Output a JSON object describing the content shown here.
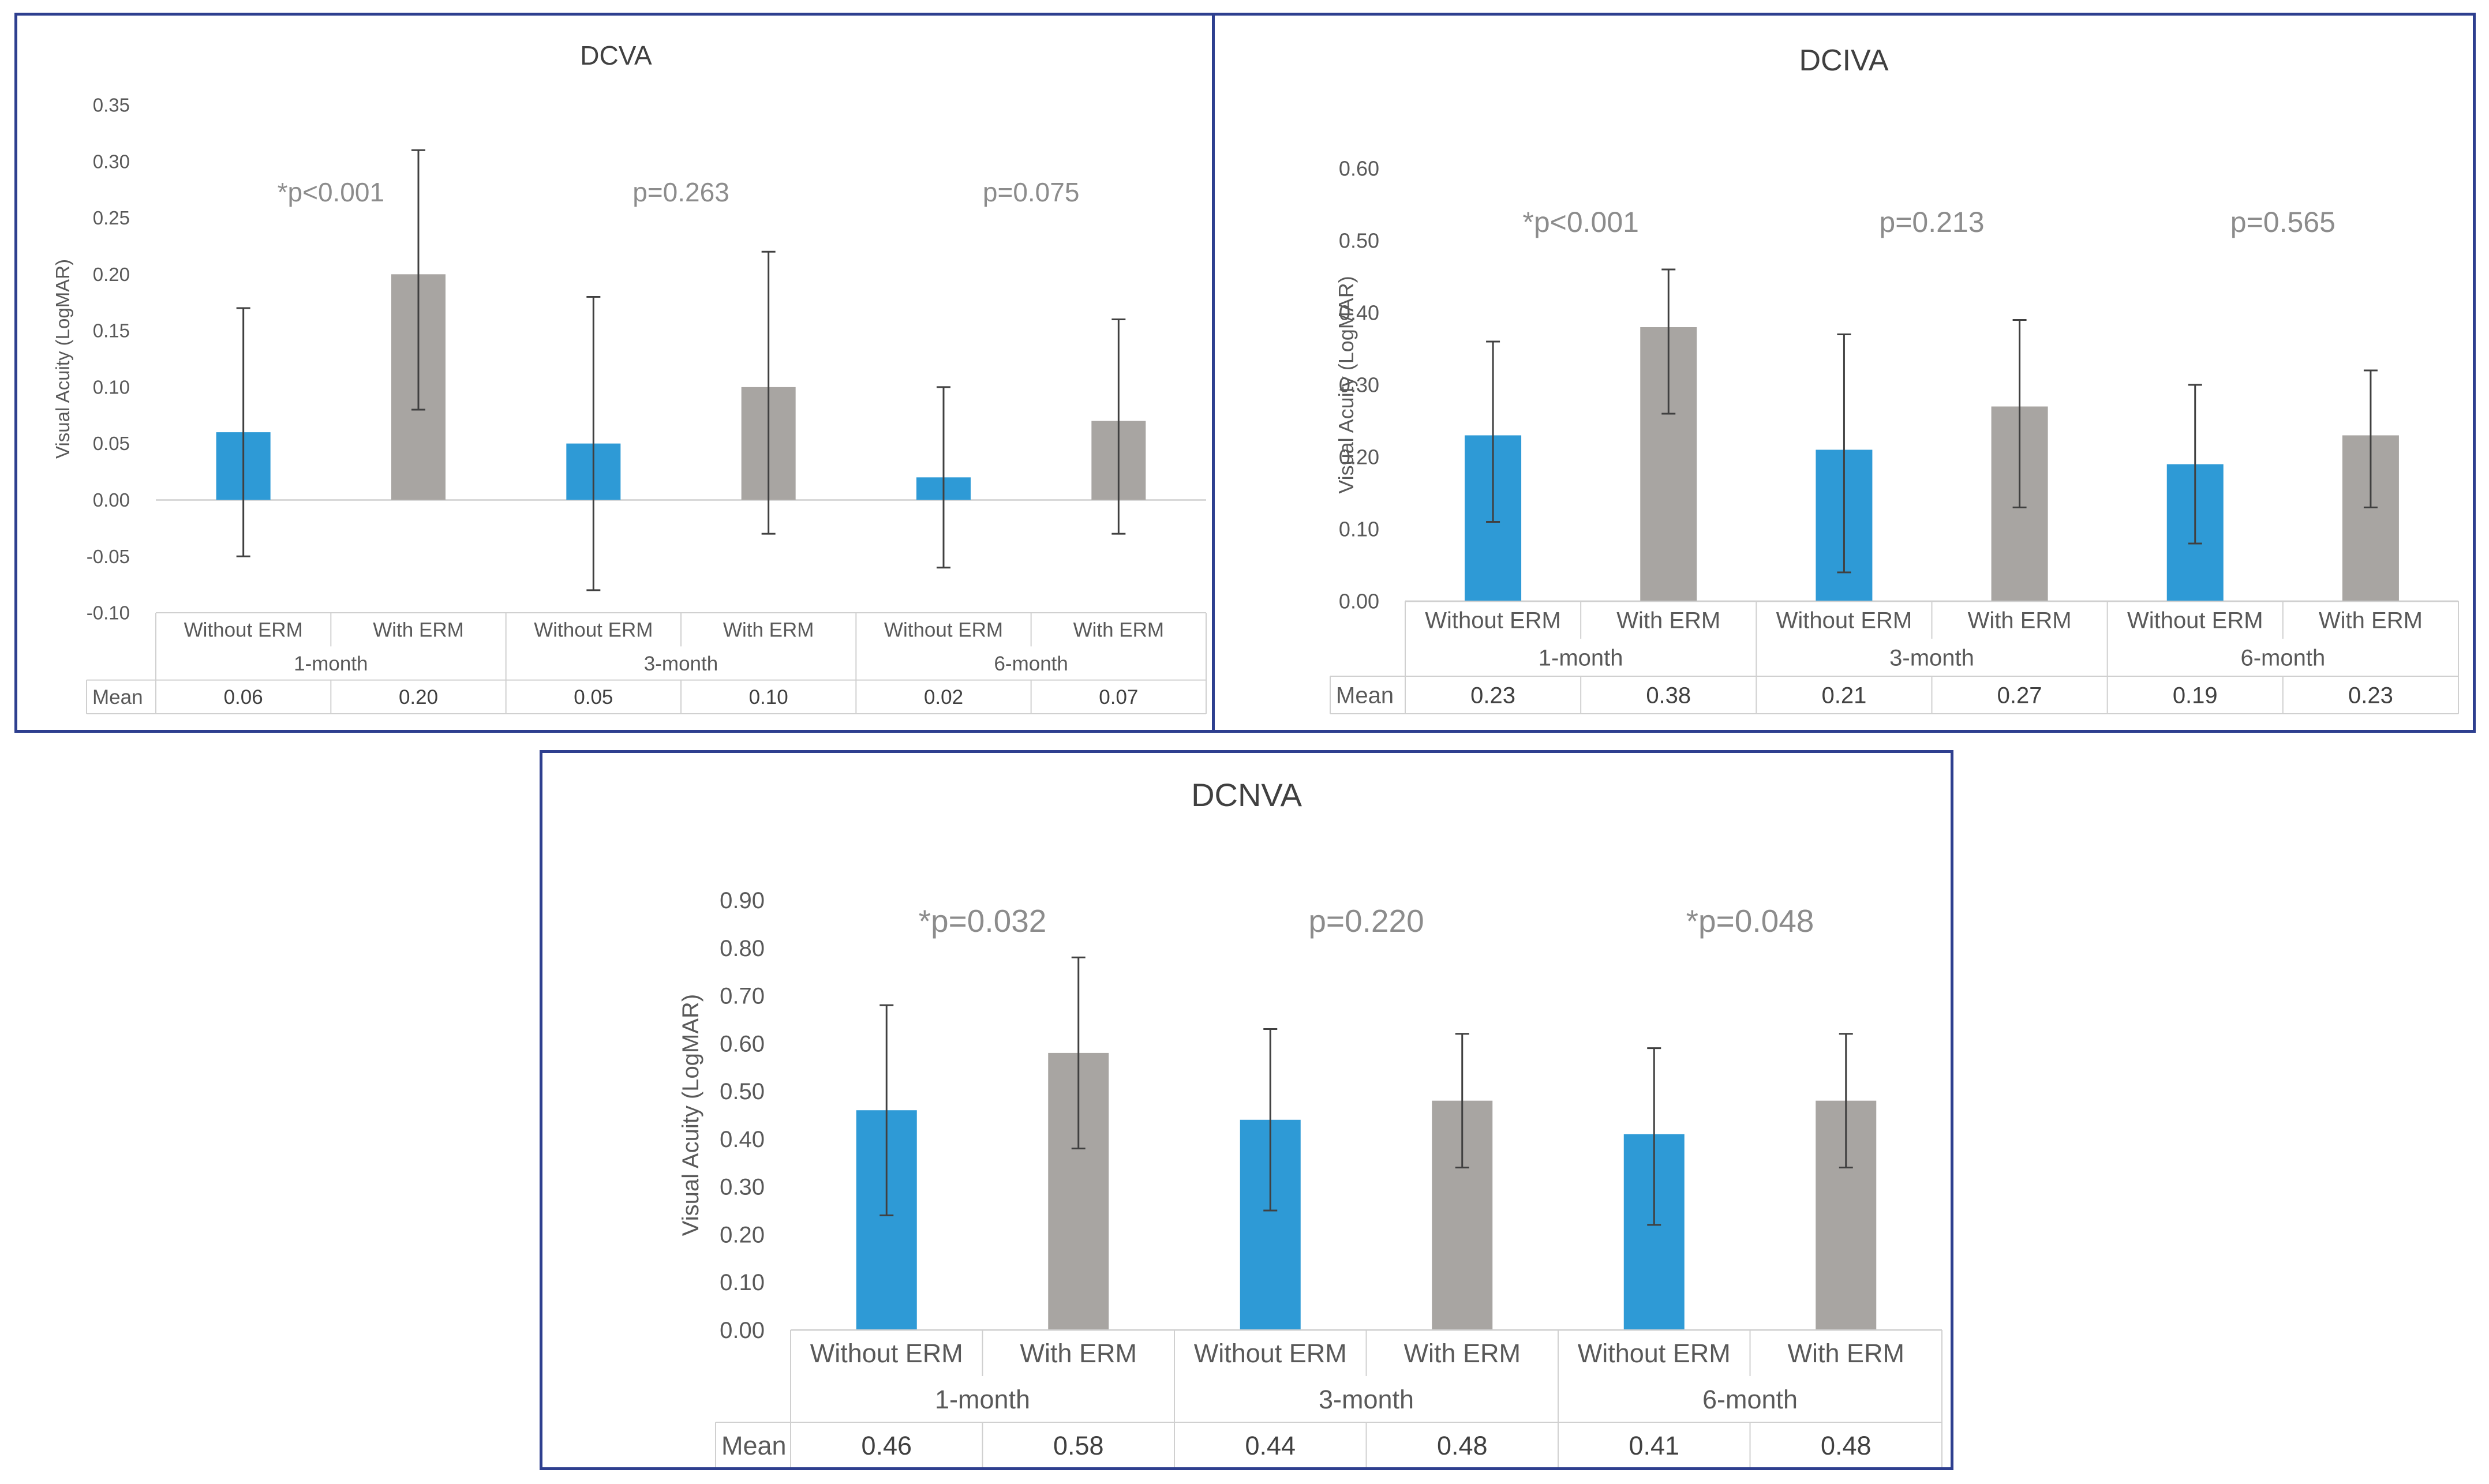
{
  "colors": {
    "without": "#2e9ad6",
    "with": "#a8a5a2",
    "frame": "#2e3f8f"
  },
  "chart_data": [
    {
      "type": "bar",
      "title": "DCVA",
      "ylabel": "Visual Acuity (LogMAR)",
      "ylim": [
        -0.1,
        0.35
      ],
      "yticks": [
        "-0.10",
        "-0.05",
        "0.00",
        "0.05",
        "0.10",
        "0.15",
        "0.20",
        "0.25",
        "0.30",
        "0.35"
      ],
      "categories": [
        "Without ERM",
        "With ERM",
        "Without ERM",
        "With ERM",
        "Without ERM",
        "With ERM"
      ],
      "groups": [
        "1-month",
        "3-month",
        "6-month"
      ],
      "pvalues": [
        "*p<0.001",
        "p=0.263",
        "p=0.075"
      ],
      "values": [
        0.06,
        0.2,
        0.05,
        0.1,
        0.02,
        0.07
      ],
      "err_low": [
        -0.05,
        0.08,
        -0.08,
        -0.03,
        -0.06,
        -0.03
      ],
      "err_high": [
        0.17,
        0.31,
        0.18,
        0.22,
        0.1,
        0.16
      ],
      "table_label": "Mean",
      "table_values": [
        "0.06",
        "0.20",
        "0.05",
        "0.10",
        "0.02",
        "0.07"
      ]
    },
    {
      "type": "bar",
      "title": "DCIVA",
      "ylabel": "Visual Acuity (LogMAR)",
      "ylim": [
        0.0,
        0.6
      ],
      "yticks": [
        "0.00",
        "0.10",
        "0.20",
        "0.30",
        "0.40",
        "0.50",
        "0.60"
      ],
      "categories": [
        "Without ERM",
        "With ERM",
        "Without ERM",
        "With ERM",
        "Without ERM",
        "With ERM"
      ],
      "groups": [
        "1-month",
        "3-month",
        "6-month"
      ],
      "pvalues": [
        "*p<0.001",
        "p=0.213",
        "p=0.565"
      ],
      "values": [
        0.23,
        0.38,
        0.21,
        0.27,
        0.19,
        0.23
      ],
      "err_low": [
        0.11,
        0.26,
        0.04,
        0.13,
        0.08,
        0.13
      ],
      "err_high": [
        0.36,
        0.46,
        0.37,
        0.39,
        0.3,
        0.32
      ],
      "table_label": "Mean",
      "table_values": [
        "0.23",
        "0.38",
        "0.21",
        "0.27",
        "0.19",
        "0.23"
      ]
    },
    {
      "type": "bar",
      "title": "DCNVA",
      "ylabel": "Visual Acuity (LogMAR)",
      "ylim": [
        0.0,
        0.9
      ],
      "yticks": [
        "0.00",
        "0.10",
        "0.20",
        "0.30",
        "0.40",
        "0.50",
        "0.60",
        "0.70",
        "0.80",
        "0.90"
      ],
      "categories": [
        "Without ERM",
        "With ERM",
        "Without ERM",
        "With ERM",
        "Without ERM",
        "With ERM"
      ],
      "groups": [
        "1-month",
        "3-month",
        "6-month"
      ],
      "pvalues": [
        "*p=0.032",
        "p=0.220",
        "*p=0.048"
      ],
      "values": [
        0.46,
        0.58,
        0.44,
        0.48,
        0.41,
        0.48
      ],
      "err_low": [
        0.24,
        0.38,
        0.25,
        0.34,
        0.22,
        0.34
      ],
      "err_high": [
        0.68,
        0.78,
        0.63,
        0.62,
        0.59,
        0.62
      ],
      "table_label": "Mean",
      "table_values": [
        "0.46",
        "0.58",
        "0.44",
        "0.48",
        "0.41",
        "0.48"
      ]
    }
  ]
}
